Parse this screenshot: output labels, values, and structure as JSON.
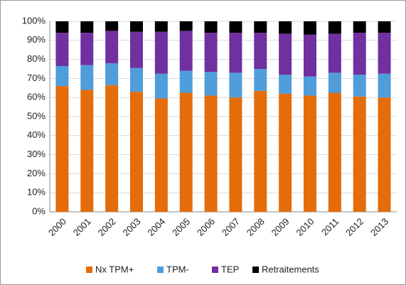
{
  "chart_data": {
    "type": "stacked_bar",
    "categories": [
      "2000",
      "2001",
      "2002",
      "2003",
      "2004",
      "2005",
      "2006",
      "2007",
      "2008",
      "2009",
      "2010",
      "2011",
      "2012",
      "2013"
    ],
    "series": [
      {
        "name": "Nx TPM+",
        "color": "#e46c0a",
        "values": [
          66,
          64,
          66.5,
          63,
          59.5,
          62.5,
          61,
          60,
          63.5,
          62,
          61,
          62.5,
          60.5,
          60
        ]
      },
      {
        "name": "TPM-",
        "color": "#4f9ddb",
        "values": [
          10.5,
          13,
          11.5,
          12.5,
          13,
          11.5,
          12.5,
          13,
          11.5,
          10,
          10,
          10.5,
          11.5,
          12.5
        ]
      },
      {
        "name": "TEP",
        "color": "#7030a0",
        "values": [
          17.5,
          17,
          17,
          19,
          22,
          21,
          20.5,
          21,
          19,
          21.5,
          22,
          20.5,
          22,
          21.5
        ]
      },
      {
        "name": "Retraitements",
        "color": "#000000",
        "values": [
          6,
          6,
          5,
          5.5,
          5.5,
          5,
          6,
          6,
          6,
          6.5,
          7,
          6.5,
          6,
          6
        ]
      }
    ],
    "ylim": [
      0,
      100
    ],
    "yticks": [
      {
        "value": 0,
        "label": "0%"
      },
      {
        "value": 10,
        "label": "10%"
      },
      {
        "value": 20,
        "label": "20%"
      },
      {
        "value": 30,
        "label": "30%"
      },
      {
        "value": 40,
        "label": "40%"
      },
      {
        "value": 50,
        "label": "50%"
      },
      {
        "value": 60,
        "label": "60%"
      },
      {
        "value": 70,
        "label": "70%"
      },
      {
        "value": 80,
        "label": "80%"
      },
      {
        "value": 90,
        "label": "90%"
      },
      {
        "value": 100,
        "label": "100%"
      }
    ],
    "grid": true,
    "legend": "bottom"
  }
}
